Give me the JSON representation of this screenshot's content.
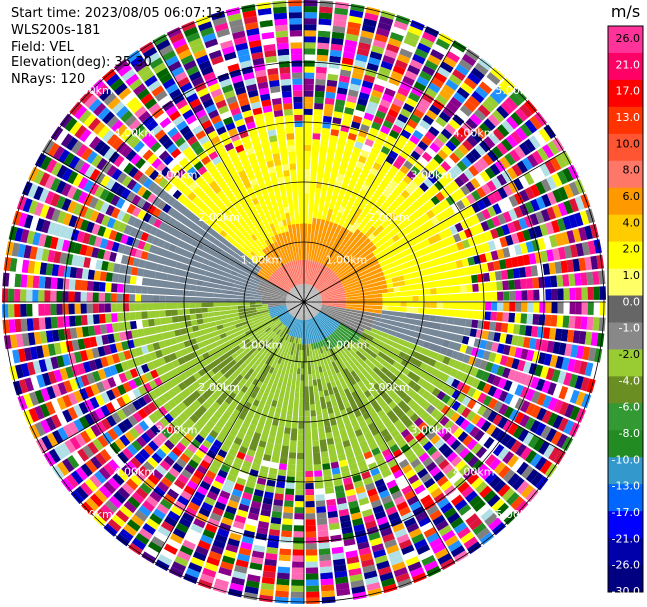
{
  "header": {
    "start_time": "Start time: 2023/08/05 06:07:13",
    "instrument": "WLS200s-181",
    "field": "Field: VEL",
    "elevation": "Elevation(deg): 35.30",
    "nrays": "NRays: 120"
  },
  "chart_data": {
    "type": "ppi",
    "field": "VEL",
    "units": "m/s",
    "nrays": 120,
    "ring_labels": [
      "1.00km",
      "2.00km",
      "3.00km",
      "4.00km",
      "5.00km"
    ],
    "colorbar": {
      "units": "m/s",
      "ticks": [
        "26.0",
        "21.0",
        "17.0",
        "13.0",
        "10.0",
        "8.0",
        "6.0",
        "4.0",
        "2.0",
        "1.0",
        "0.0",
        "-1.0",
        "-2.0",
        "-4.0",
        "-6.0",
        "-8.0",
        "-10.0",
        "-13.0",
        "-17.0",
        "-21.0",
        "-26.0",
        "-30.0"
      ],
      "colors": [
        "#ff3399",
        "#ff0066",
        "#ff0000",
        "#ff3300",
        "#ff5533",
        "#ff7766",
        "#ff9900",
        "#ffcc00",
        "#ffff00",
        "#ffff66",
        "#666666",
        "#888888",
        "#99cc33",
        "#6b8e23",
        "#339933",
        "#228b22",
        "#3399cc",
        "#0066ff",
        "#0000ff",
        "#0000aa",
        "#000080"
      ]
    },
    "gate_palette": [
      "#ff1493",
      "#ff0000",
      "#ff00ff",
      "#8b008b",
      "#0000cd",
      "#000080",
      "#1e90ff",
      "#ffff00",
      "#ffa500",
      "#228b22",
      "#006400",
      "#b0e0e6",
      "#808080",
      "#ff69b4",
      "#ff4500",
      "#9acd32",
      "#4b0082",
      "#00008b",
      "#dc143c",
      "#ffffff"
    ]
  }
}
